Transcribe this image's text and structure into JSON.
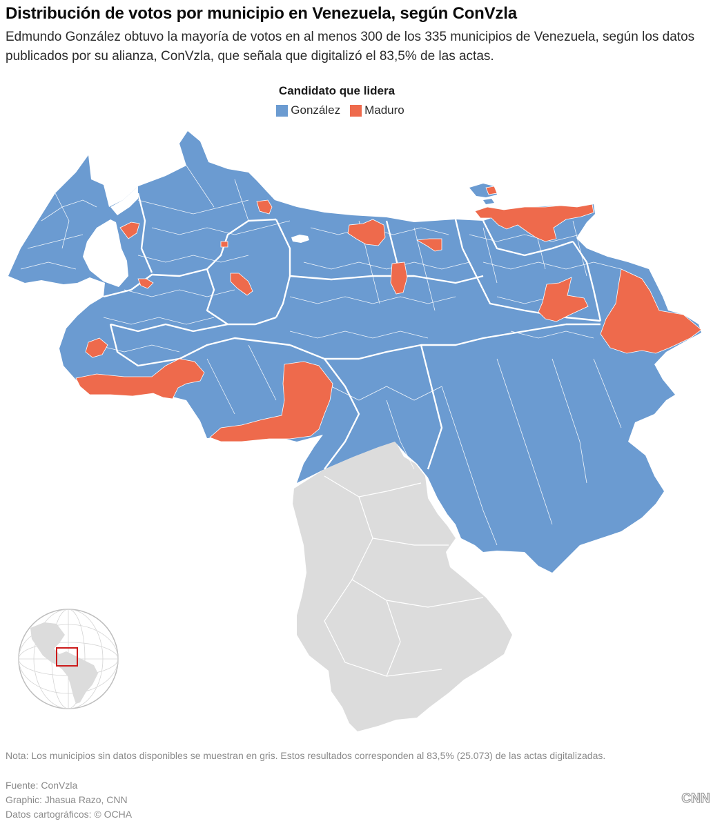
{
  "title": "Distribución de votos por municipio en Venezuela, según ConVzla",
  "subtitle": "Edmundo González obtuvo la mayoría de votos en al menos 300 de los 335 municipios de Venezuela, según los datos publicados por su alianza, ConVzla, que señala que digitalizó el 83,5% de las actas.",
  "legend": {
    "title": "Candidato que lidera",
    "items": [
      {
        "label": "González",
        "color": "#6b9bd1"
      },
      {
        "label": "Maduro",
        "color": "#ee6a4c"
      }
    ]
  },
  "colors": {
    "gonzalez": "#6b9bd1",
    "maduro": "#ee6a4c",
    "no_data": "#dcdcdc",
    "border": "#ffffff",
    "locator_box": "#cc1a1a"
  },
  "note": "Nota: Los municipios sin datos disponibles se muestran en gris. Estos resultados corresponden al 83,5% (25.073) de las actas digitalizadas.",
  "credits": {
    "source": "Fuente: ConVzla",
    "graphic": "Graphic: Jhasua Razo, CNN",
    "cartography": "Datos cartográficos: © OCHA"
  },
  "logo": "CNN"
}
